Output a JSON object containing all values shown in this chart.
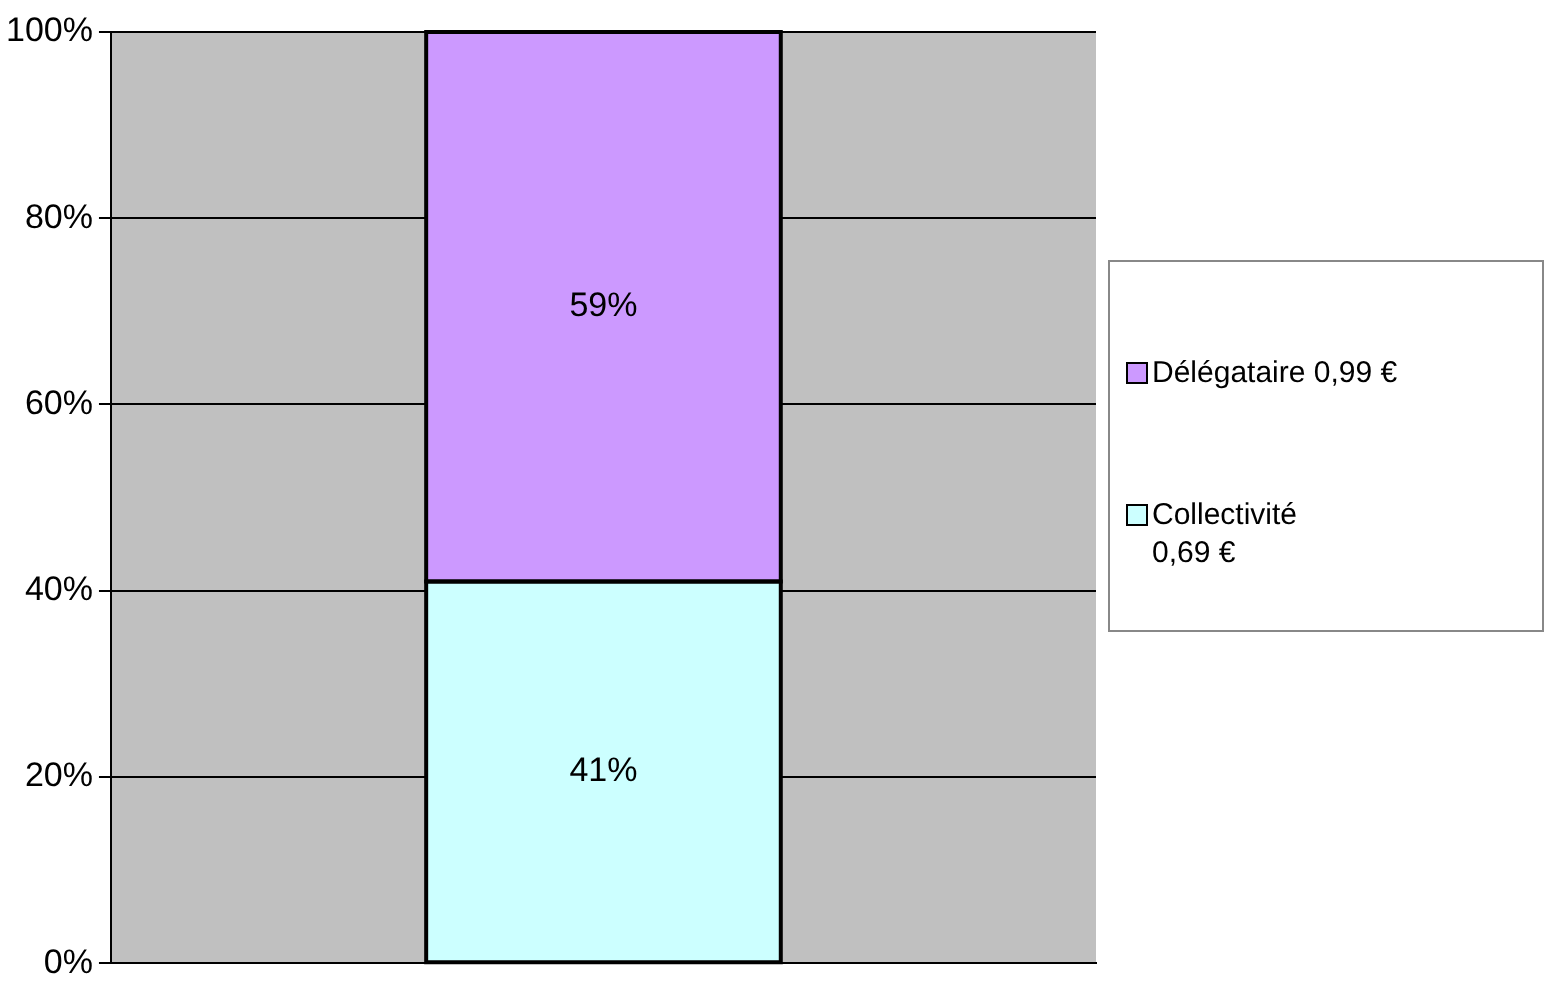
{
  "chart_data": {
    "type": "bar",
    "stacked": true,
    "categories": [
      null
    ],
    "series": [
      {
        "name": "Collectivité\n0,69 €",
        "color": "#ccffff",
        "values": [
          41
        ],
        "value_labels": [
          "41%"
        ]
      },
      {
        "name": "Délégataire  0,99 €",
        "color": "#cc99ff",
        "values": [
          59
        ],
        "value_labels": [
          "59%"
        ]
      }
    ],
    "ylim": [
      0,
      100
    ],
    "yticks": [
      {
        "value": 0,
        "label": "0%"
      },
      {
        "value": 20,
        "label": "20%"
      },
      {
        "value": 40,
        "label": "40%"
      },
      {
        "value": 60,
        "label": "60%"
      },
      {
        "value": 80,
        "label": "80%"
      },
      {
        "value": 100,
        "label": "100%"
      }
    ],
    "grid": "y",
    "legend": "right"
  }
}
